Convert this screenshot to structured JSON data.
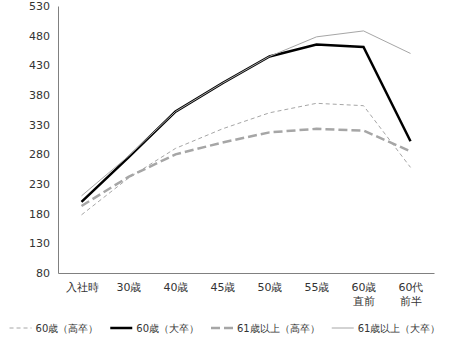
{
  "chart_data": {
    "type": "line",
    "categories": [
      "入社時",
      "30歳",
      "40歳",
      "45歳",
      "50歳",
      "55歳",
      "60歳\n直前",
      "60代\n前半"
    ],
    "series": [
      {
        "name": "60歳（高卒）",
        "color": "#a6a6a6",
        "line_style": "dashed",
        "values": [
          178,
          240,
          290,
          323,
          350,
          366,
          362,
          258
        ]
      },
      {
        "name": "60歳（大卒）",
        "color": "#000000",
        "line_style": "solid",
        "values": [
          200,
          275,
          352,
          400,
          445,
          465,
          461,
          302
        ]
      },
      {
        "name": "61歳以上（高卒）",
        "color": "#a6a6a6",
        "line_style": "dashed",
        "values": [
          193,
          242,
          280,
          300,
          317,
          323,
          320,
          285
        ]
      },
      {
        "name": "61歳以上（大卒）",
        "color": "#a6a6a6",
        "line_style": "solid",
        "values": [
          210,
          277,
          352,
          400,
          445,
          478,
          488,
          450
        ]
      }
    ],
    "ylim": [
      80,
      530
    ],
    "yticks": [
      80,
      130,
      180,
      230,
      280,
      330,
      380,
      430,
      480,
      530
    ],
    "grid": false,
    "legend": "bottom"
  }
}
